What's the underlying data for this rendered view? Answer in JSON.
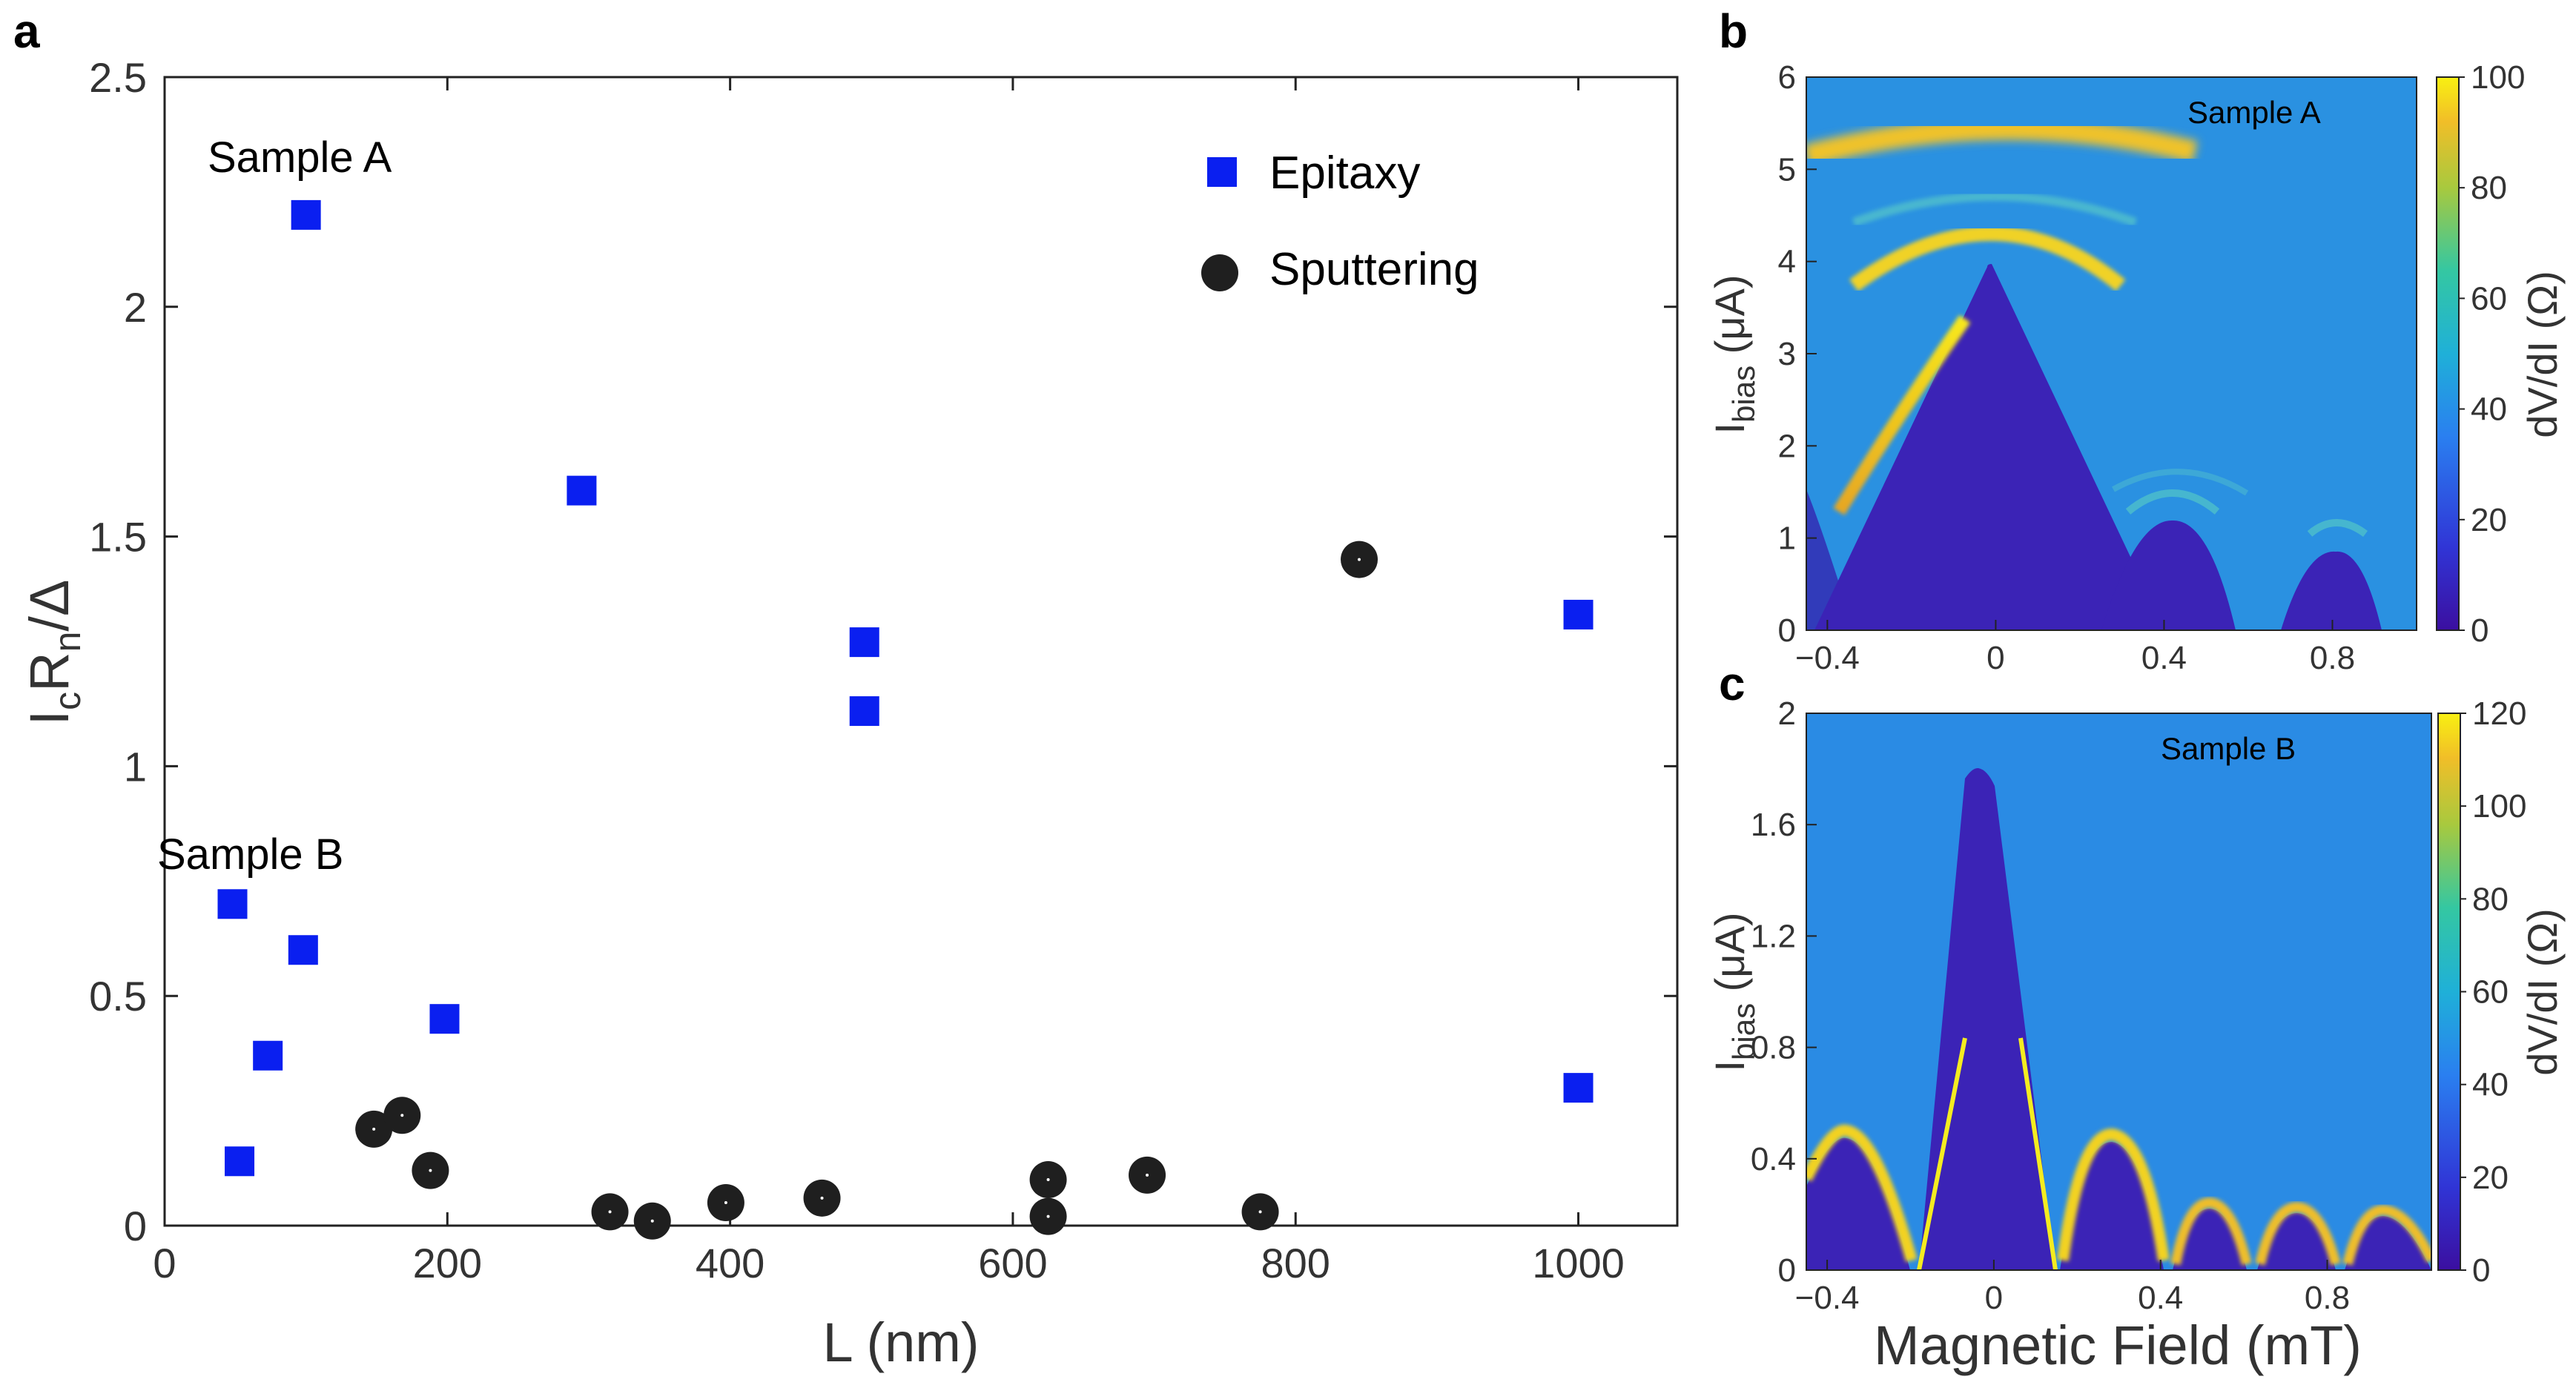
{
  "panel_letters": {
    "a": "a",
    "b": "b",
    "c": "c"
  },
  "panel_a": {
    "xlabel": "L (nm)",
    "ylabel_main": "I",
    "ylabel_sub1": "c",
    "ylabel_mid": "R",
    "ylabel_sub2": "n",
    "ylabel_end": "/Δ",
    "x_ticks": [
      "0",
      "200",
      "400",
      "600",
      "800",
      "1000"
    ],
    "y_ticks": [
      "0",
      "0.5",
      "1",
      "1.5",
      "2",
      "2.5"
    ],
    "annotations": {
      "sample_a": "Sample A",
      "sample_b": "Sample B"
    },
    "legend": {
      "epitaxy": "Epitaxy",
      "sputtering": "Sputtering"
    }
  },
  "panel_b": {
    "annotation": "Sample A",
    "ylabel_main": "I",
    "ylabel_sub": "bias",
    "ylabel_unit": " (μA)",
    "x_ticks": [
      "−0.4",
      "0",
      "0.4",
      "0.8"
    ],
    "y_ticks": [
      "0",
      "1",
      "2",
      "3",
      "4",
      "5",
      "6"
    ],
    "colorbar_label": "dV/dI (Ω)",
    "colorbar_ticks": [
      "0",
      "20",
      "40",
      "60",
      "80",
      "100"
    ]
  },
  "panel_c": {
    "annotation": "Sample B",
    "xlabel": "Magnetic Field (mT)",
    "ylabel_main": "I",
    "ylabel_sub": "bias",
    "ylabel_unit": " (μA)",
    "x_ticks": [
      "−0.4",
      "0",
      "0.4",
      "0.8"
    ],
    "y_ticks": [
      "0",
      "0.4",
      "0.8",
      "1.2",
      "1.6",
      "2"
    ],
    "colorbar_label": "dV/dI (Ω)",
    "colorbar_ticks": [
      "0",
      "20",
      "40",
      "60",
      "80",
      "100",
      "120"
    ]
  },
  "colors": {
    "epitaxy": "#0a1ff0",
    "sputtering": "#1f1f1f",
    "map_low": "#2a20a8",
    "map_mid": "#3a9be6",
    "map_high": "#f5e21a"
  },
  "chart_data": [
    {
      "type": "scatter",
      "xlabel": "L (nm)",
      "ylabel": "IcRn/Δ",
      "xlim": [
        0,
        1070
      ],
      "ylim": [
        0,
        2.5
      ],
      "grid": false,
      "legend_position": "top-right",
      "series": [
        {
          "name": "Epitaxy",
          "marker": "square",
          "points": [
            [
              100,
              2.2
            ],
            [
              295,
              1.6
            ],
            [
              495,
              1.27
            ],
            [
              495,
              1.12
            ],
            [
              1000,
              1.33
            ],
            [
              48,
              0.7
            ],
            [
              98,
              0.6
            ],
            [
              73,
              0.37
            ],
            [
              198,
              0.45
            ],
            [
              53,
              0.14
            ],
            [
              1000,
              0.3
            ]
          ]
        },
        {
          "name": "Sputtering",
          "marker": "circle",
          "points": [
            [
              148,
              0.21
            ],
            [
              168,
              0.24
            ],
            [
              188,
              0.12
            ],
            [
              315,
              0.03
            ],
            [
              345,
              0.01
            ],
            [
              397,
              0.05
            ],
            [
              465,
              0.06
            ],
            [
              625,
              0.1
            ],
            [
              625,
              0.02
            ],
            [
              695,
              0.11
            ],
            [
              775,
              0.03
            ],
            [
              845,
              1.45
            ]
          ]
        }
      ]
    },
    {
      "type": "heatmap",
      "title": "Sample A",
      "xlabel": "",
      "ylabel": "Ibias (μA)",
      "xlim": [
        -0.45,
        1.0
      ],
      "ylim": [
        0,
        6
      ],
      "colorbar": {
        "label": "dV/dI (Ω)",
        "range": [
          0,
          100
        ]
      },
      "central_lobe": {
        "center": 0.0,
        "half_width": 0.43,
        "peak": 3.9
      },
      "side_lobes": [
        {
          "center": 0.52,
          "half_width": 0.14,
          "peak": 1.15
        },
        {
          "center": 0.85,
          "half_width": 0.13,
          "peak": 0.8
        }
      ]
    },
    {
      "type": "heatmap",
      "title": "Sample B",
      "xlabel": "Magnetic Field (mT)",
      "ylabel": "Ibias (μA)",
      "xlim": [
        -0.45,
        1.05
      ],
      "ylim": [
        0,
        2
      ],
      "colorbar": {
        "label": "dV/dI (Ω)",
        "range": [
          0,
          120
        ]
      },
      "central_lobe": {
        "center": 0.0,
        "half_width": 0.16,
        "peak": 1.8
      },
      "side_lobes": [
        {
          "center": -0.33,
          "half_width": 0.14,
          "peak": 0.5
        },
        {
          "center": 0.31,
          "half_width": 0.14,
          "peak": 0.5
        },
        {
          "center": 0.58,
          "half_width": 0.12,
          "peak": 0.32
        },
        {
          "center": 0.8,
          "half_width": 0.12,
          "peak": 0.3
        },
        {
          "center": 1.0,
          "half_width": 0.1,
          "peak": 0.27
        }
      ]
    }
  ]
}
